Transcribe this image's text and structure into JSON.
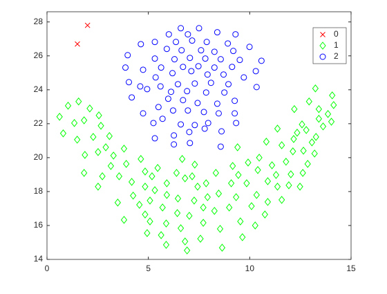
{
  "chart_data": {
    "type": "scatter",
    "xlim": [
      0,
      15
    ],
    "ylim": [
      14,
      28.6
    ],
    "xticks": [
      0,
      5,
      10,
      15
    ],
    "yticks": [
      14,
      16,
      18,
      20,
      22,
      24,
      26,
      28
    ],
    "legend": "northeast",
    "series": [
      {
        "name": "0",
        "color": "#ff0000",
        "marker": "x",
        "x": [
          2.0,
          1.5
        ],
        "values": [
          27.8,
          26.7
        ]
      },
      {
        "name": "1",
        "color": "#00ff00",
        "marker": "diamond",
        "x": [
          0.62,
          1.56,
          1.04,
          0.8,
          1.35,
          2.11,
          1.83,
          1.49,
          2.56,
          2.66,
          2.28,
          1.87,
          3.08,
          2.9,
          1.83,
          2.52,
          3.15,
          3.8,
          2.52,
          3.28,
          3.56,
          2.73,
          3.91,
          3.49,
          4.18,
          4.63,
          3.8,
          4.84,
          4.25,
          4.84,
          4.56,
          5.18,
          5.46,
          5.08,
          5.32,
          5.91,
          4.84,
          5.7,
          4.94,
          5.08,
          5.63,
          6.39,
          5.91,
          5.88,
          6.67,
          6.81,
          6.46,
          6.43,
          5.88,
          6.6,
          7.16,
          7.26,
          7.02,
          6.81,
          7.29,
          7.43,
          6.91,
          7.71,
          7.57,
          7.85,
          7.92,
          7.71,
          8.33,
          8.26,
          8.47,
          8.54,
          8.64,
          9.09,
          8.99,
          9.16,
          9.33,
          9.54,
          9.44,
          9.92,
          9.85,
          10.09,
          9.64,
          10.34,
          10.47,
          10.27,
          10.75,
          10.89,
          10.4,
          11.1,
          11.37,
          10.89,
          11.3,
          11.58,
          11.79,
          11.93,
          12.03,
          12.13,
          12.62,
          12.48,
          12.86,
          12.58,
          12.79,
          13.07,
          12.65,
          13.2,
          12.17,
          12.34,
          13.27,
          13.41,
          13.62,
          13.86,
          14.03,
          14.14,
          14.07,
          13.24,
          13.41,
          12.93,
          12.2,
          11.58,
          10.82,
          11.37,
          9.4
        ],
        "values": [
          22.41,
          23.31,
          23.06,
          21.43,
          22.04,
          22.9,
          22.2,
          21.06,
          22.49,
          21.88,
          21.22,
          20.16,
          21.27,
          20.61,
          19.1,
          20.33,
          19.51,
          20.53,
          18.29,
          20.12,
          18.9,
          18.9,
          19.63,
          17.35,
          18.57,
          19.92,
          16.33,
          19.18,
          17.76,
          18.29,
          17.22,
          18.9,
          19.39,
          17.47,
          18.08,
          18.49,
          16.65,
          17.06,
          15.55,
          16.24,
          15.43,
          19.1,
          17.8,
          16.12,
          19.92,
          18.78,
          17.59,
          16.73,
          14.86,
          15.84,
          18.9,
          17.47,
          16.57,
          15.06,
          19.59,
          18.29,
          14.53,
          17.06,
          15.22,
          18.49,
          17.67,
          16.16,
          19.1,
          16.86,
          17.88,
          15.8,
          14.69,
          18.49,
          17.06,
          19.51,
          17.67,
          16.24,
          18.98,
          19.71,
          18.49,
          17.14,
          15.31,
          17.8,
          20.0,
          16.0,
          16.65,
          18.61,
          19.27,
          19.55,
          18.29,
          17.39,
          18.98,
          17.51,
          19.76,
          18.37,
          19.02,
          20.37,
          19.1,
          18.29,
          19.63,
          21.96,
          21.63,
          20.9,
          20.41,
          20.24,
          21.1,
          21.47,
          21.22,
          22.29,
          21.84,
          22.57,
          22.12,
          23.1,
          23.67,
          24.08,
          22.86,
          23.31,
          22.86,
          20.73,
          20.94,
          21.71,
          20.61
        ]
      },
      {
        "name": "2",
        "color": "#0000ff",
        "marker": "circle",
        "x": [
          6.6,
          7.5,
          6.01,
          8.4,
          6.95,
          9.3,
          5.32,
          4.63,
          6.36,
          7.16,
          7.88,
          8.92,
          9.99,
          3.98,
          5.91,
          6.64,
          7.6,
          8.26,
          9.19,
          10.58,
          3.87,
          5.32,
          6.29,
          7.05,
          7.81,
          8.57,
          9.51,
          4.74,
          5.63,
          6.71,
          7.47,
          8.26,
          9.13,
          4.04,
          5.36,
          6.19,
          7.12,
          7.92,
          8.71,
          9.71,
          10.3,
          4.6,
          5.6,
          6.46,
          7.29,
          8.09,
          8.95,
          4.18,
          4.94,
          6.12,
          6.91,
          7.85,
          8.75,
          10.34,
          4.74,
          5.5,
          5.98,
          6.71,
          7.43,
          8.4,
          9.26,
          5.25,
          6.22,
          6.95,
          7.74,
          8.47,
          9.26,
          5.7,
          6.6,
          7.29,
          7.95,
          9.33,
          5.32,
          6.26,
          7.02,
          7.78,
          8.61,
          6.26,
          7.05,
          8.57
        ],
        "values": [
          27.63,
          27.63,
          27.27,
          27.39,
          27.27,
          27.27,
          26.82,
          26.69,
          26.82,
          26.9,
          26.82,
          26.73,
          26.53,
          26.04,
          26.41,
          26.33,
          26.33,
          26.24,
          26.29,
          25.71,
          25.31,
          25.84,
          25.8,
          25.88,
          25.84,
          25.8,
          25.76,
          25.18,
          25.31,
          25.35,
          25.39,
          25.31,
          25.35,
          24.45,
          24.73,
          24.98,
          25.1,
          24.9,
          24.9,
          24.73,
          25.1,
          24.2,
          24.2,
          24.33,
          24.37,
          24.41,
          24.33,
          23.55,
          24.04,
          23.88,
          23.92,
          23.84,
          23.84,
          24.16,
          22.61,
          22.98,
          23.47,
          23.39,
          23.22,
          23.18,
          23.35,
          22.04,
          22.78,
          22.78,
          22.69,
          22.61,
          22.61,
          22.29,
          21.96,
          21.92,
          22.04,
          22.04,
          21.14,
          21.31,
          21.51,
          21.71,
          21.55,
          20.78,
          20.86,
          20.65
        ]
      }
    ]
  }
}
